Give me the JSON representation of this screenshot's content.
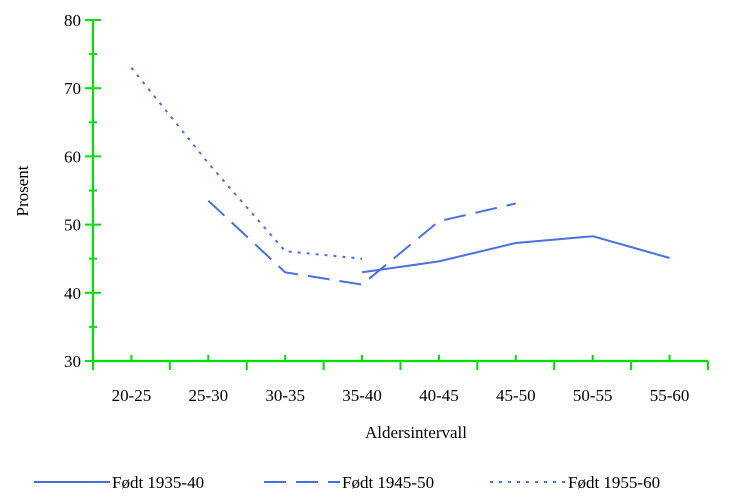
{
  "chart_data": {
    "type": "line",
    "title": "",
    "xlabel": "Aldersintervall",
    "ylabel": "Prosent",
    "categories": [
      "20-25",
      "25-30",
      "30-35",
      "35-40",
      "40-45",
      "45-50",
      "50-55",
      "55-60"
    ],
    "ylim": [
      30,
      80
    ],
    "yticks": [
      30,
      40,
      50,
      60,
      70,
      80
    ],
    "grid": false,
    "legend_position": "bottom",
    "axis_color": "#00dd00",
    "series": [
      {
        "name": "Født 1935-40",
        "style": "solid",
        "color": "#4a6fe3",
        "values": [
          null,
          null,
          null,
          43.0,
          44.6,
          47.3,
          48.3,
          45.1
        ]
      },
      {
        "name": "Født 1945-50",
        "style": "dashed",
        "color": "#4a6fe3",
        "values": [
          null,
          53.5,
          43.0,
          41.2,
          50.5,
          53.1,
          null,
          null
        ]
      },
      {
        "name": "Født 1955-60",
        "style": "dotted",
        "color": "#4a6fe3",
        "values": [
          73.0,
          59.0,
          46.1,
          45.0,
          null,
          null,
          null,
          null
        ]
      }
    ]
  }
}
